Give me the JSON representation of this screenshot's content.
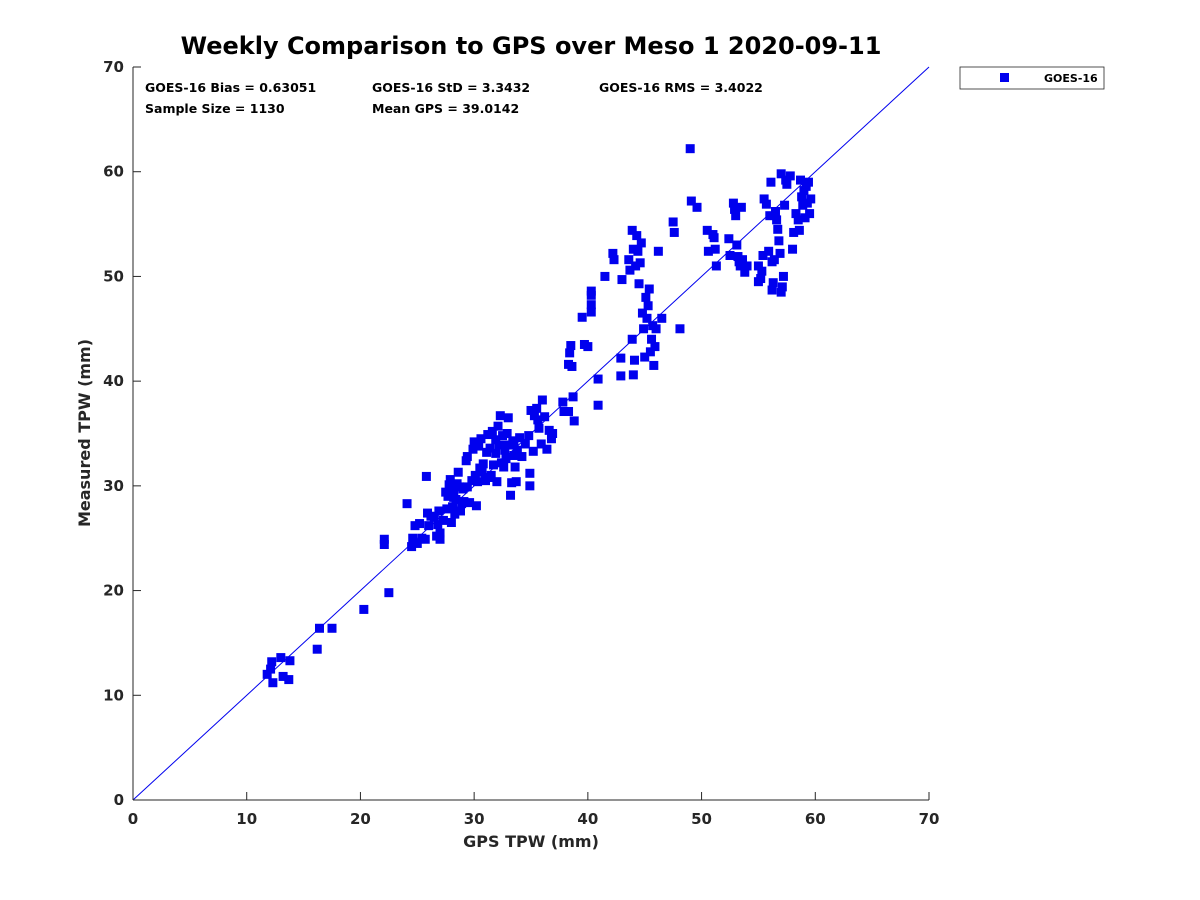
{
  "chart_data": {
    "type": "scatter",
    "title": "Weekly Comparison to GPS over Meso 1 2020-09-11",
    "xlabel": "GPS TPW (mm)",
    "ylabel": "Measured TPW (mm)",
    "xlim": [
      0,
      70
    ],
    "ylim": [
      0,
      70
    ],
    "xticks": [
      "0",
      "10",
      "20",
      "30",
      "40",
      "50",
      "60",
      "70"
    ],
    "yticks": [
      "0",
      "10",
      "20",
      "30",
      "40",
      "50",
      "60",
      "70"
    ],
    "grid": false,
    "legend_position": "outside-top-right",
    "color": "#0000ee",
    "reference_line": {
      "name": "one-to-one",
      "x": [
        0,
        70
      ],
      "y": [
        0,
        70
      ]
    },
    "stats": {
      "bias": "GOES-16 Bias = 0.63051",
      "std": "GOES-16 StD = 3.3432",
      "rms": "GOES-16 RMS = 3.4022",
      "sample_size": "Sample Size = 1130",
      "mean_gps": "Mean GPS = 39.0142"
    },
    "series": [
      {
        "name": "GOES-16",
        "marker": "square",
        "points": [
          [
            11.8,
            12.0
          ],
          [
            12.1,
            12.5
          ],
          [
            12.2,
            13.2
          ],
          [
            12.3,
            11.2
          ],
          [
            13.0,
            13.6
          ],
          [
            13.2,
            11.8
          ],
          [
            13.7,
            11.5
          ],
          [
            13.8,
            13.3
          ],
          [
            16.2,
            14.4
          ],
          [
            16.4,
            16.4
          ],
          [
            17.5,
            16.4
          ],
          [
            20.3,
            18.2
          ],
          [
            22.5,
            19.8
          ],
          [
            22.1,
            24.4
          ],
          [
            22.1,
            24.9
          ],
          [
            24.1,
            28.3
          ],
          [
            24.5,
            24.2
          ],
          [
            24.6,
            25.0
          ],
          [
            24.8,
            26.2
          ],
          [
            25.0,
            24.5
          ],
          [
            25.2,
            26.4
          ],
          [
            25.4,
            25.0
          ],
          [
            25.7,
            24.9
          ],
          [
            25.8,
            30.9
          ],
          [
            25.9,
            27.4
          ],
          [
            26.0,
            26.2
          ],
          [
            26.2,
            27.1
          ],
          [
            26.5,
            27.0
          ],
          [
            26.7,
            25.2
          ],
          [
            26.8,
            26.3
          ],
          [
            26.9,
            27.6
          ],
          [
            27.0,
            24.9
          ],
          [
            27.0,
            25.5
          ],
          [
            27.3,
            26.7
          ],
          [
            27.6,
            27.8
          ],
          [
            27.7,
            29.0
          ],
          [
            27.8,
            30.1
          ],
          [
            27.9,
            30.6
          ],
          [
            28.0,
            26.5
          ],
          [
            28.1,
            28.0
          ],
          [
            28.2,
            29.5
          ],
          [
            28.3,
            27.3
          ],
          [
            28.4,
            28.7
          ],
          [
            28.5,
            30.2
          ],
          [
            28.6,
            31.3
          ],
          [
            28.7,
            29.9
          ],
          [
            28.8,
            27.6
          ],
          [
            28.9,
            28.3
          ],
          [
            29.0,
            29.7
          ],
          [
            29.1,
            28.5
          ],
          [
            29.3,
            32.4
          ],
          [
            29.4,
            32.8
          ],
          [
            29.6,
            28.4
          ],
          [
            29.8,
            30.5
          ],
          [
            29.9,
            33.5
          ],
          [
            30.0,
            34.2
          ],
          [
            30.1,
            31.0
          ],
          [
            30.2,
            28.1
          ],
          [
            30.3,
            30.4
          ],
          [
            30.4,
            33.8
          ],
          [
            30.6,
            34.5
          ],
          [
            30.7,
            31.3
          ],
          [
            30.8,
            32.1
          ],
          [
            31.0,
            30.5
          ],
          [
            31.1,
            33.2
          ],
          [
            31.2,
            34.9
          ],
          [
            31.3,
            30.8
          ],
          [
            31.4,
            33.6
          ],
          [
            31.6,
            35.2
          ],
          [
            31.7,
            32.0
          ],
          [
            31.9,
            34.4
          ],
          [
            32.0,
            30.4
          ],
          [
            32.1,
            35.7
          ],
          [
            32.2,
            33.9
          ],
          [
            32.3,
            36.7
          ],
          [
            32.4,
            32.2
          ],
          [
            32.5,
            34.8
          ],
          [
            32.6,
            31.8
          ],
          [
            32.7,
            33.4
          ],
          [
            32.8,
            32.6
          ],
          [
            32.9,
            35.0
          ],
          [
            33.0,
            36.5
          ],
          [
            33.1,
            33.9
          ],
          [
            33.2,
            29.1
          ],
          [
            33.3,
            30.3
          ],
          [
            33.4,
            34.3
          ],
          [
            33.5,
            32.9
          ],
          [
            33.6,
            31.8
          ],
          [
            33.7,
            30.4
          ],
          [
            33.8,
            33.4
          ],
          [
            34.0,
            34.6
          ],
          [
            34.2,
            32.8
          ],
          [
            34.5,
            34.0
          ],
          [
            34.8,
            34.8
          ],
          [
            34.9,
            31.2
          ],
          [
            34.9,
            30.0
          ],
          [
            35.0,
            37.2
          ],
          [
            35.2,
            33.3
          ],
          [
            35.3,
            36.7
          ],
          [
            35.5,
            37.4
          ],
          [
            35.6,
            36.3
          ],
          [
            35.7,
            35.5
          ],
          [
            35.9,
            34.0
          ],
          [
            36.0,
            38.2
          ],
          [
            36.2,
            36.6
          ],
          [
            36.4,
            33.5
          ],
          [
            36.6,
            35.3
          ],
          [
            36.8,
            34.5
          ],
          [
            36.9,
            35.0
          ],
          [
            37.8,
            38.0
          ],
          [
            37.9,
            37.1
          ],
          [
            38.3,
            37.1
          ],
          [
            38.3,
            41.6
          ],
          [
            38.4,
            42.7
          ],
          [
            38.5,
            43.4
          ],
          [
            38.6,
            41.4
          ],
          [
            38.7,
            38.5
          ],
          [
            38.8,
            36.2
          ],
          [
            39.5,
            46.1
          ],
          [
            39.7,
            43.5
          ],
          [
            40.0,
            43.3
          ],
          [
            40.3,
            46.6
          ],
          [
            40.3,
            47.3
          ],
          [
            40.3,
            48.2
          ],
          [
            40.3,
            48.6
          ],
          [
            40.9,
            40.2
          ],
          [
            40.9,
            37.7
          ],
          [
            41.5,
            50.0
          ],
          [
            42.2,
            52.2
          ],
          [
            42.3,
            51.6
          ],
          [
            42.9,
            42.2
          ],
          [
            42.9,
            40.5
          ],
          [
            43.0,
            49.7
          ],
          [
            43.6,
            51.6
          ],
          [
            43.7,
            50.6
          ],
          [
            43.9,
            44.0
          ],
          [
            43.9,
            54.4
          ],
          [
            44.0,
            52.6
          ],
          [
            44.0,
            40.6
          ],
          [
            44.1,
            42.0
          ],
          [
            44.2,
            51.0
          ],
          [
            44.3,
            53.9
          ],
          [
            44.4,
            52.4
          ],
          [
            44.5,
            49.3
          ],
          [
            44.6,
            51.3
          ],
          [
            44.7,
            53.2
          ],
          [
            44.8,
            46.5
          ],
          [
            44.9,
            45.0
          ],
          [
            45.0,
            42.3
          ],
          [
            45.1,
            48.0
          ],
          [
            45.2,
            46.0
          ],
          [
            45.3,
            47.2
          ],
          [
            45.4,
            48.8
          ],
          [
            45.5,
            42.8
          ],
          [
            45.6,
            44.0
          ],
          [
            45.7,
            45.3
          ],
          [
            45.8,
            41.5
          ],
          [
            45.9,
            43.3
          ],
          [
            46.0,
            45.0
          ],
          [
            46.2,
            52.4
          ],
          [
            46.5,
            46.0
          ],
          [
            47.5,
            55.2
          ],
          [
            47.6,
            54.2
          ],
          [
            48.1,
            45.0
          ],
          [
            49.0,
            62.2
          ],
          [
            49.1,
            57.2
          ],
          [
            49.6,
            56.6
          ],
          [
            50.5,
            54.4
          ],
          [
            50.6,
            52.4
          ],
          [
            51.0,
            54.0
          ],
          [
            51.1,
            53.7
          ],
          [
            51.2,
            52.6
          ],
          [
            51.3,
            51.0
          ],
          [
            52.4,
            53.6
          ],
          [
            52.5,
            52.0
          ],
          [
            52.8,
            57.0
          ],
          [
            52.9,
            56.4
          ],
          [
            53.0,
            55.8
          ],
          [
            53.1,
            53.0
          ],
          [
            53.2,
            51.9
          ],
          [
            53.3,
            51.4
          ],
          [
            53.4,
            51.0
          ],
          [
            53.5,
            56.6
          ],
          [
            53.6,
            51.6
          ],
          [
            53.8,
            50.4
          ],
          [
            54.0,
            51.0
          ],
          [
            55.0,
            51.0
          ],
          [
            55.2,
            49.8
          ],
          [
            55.4,
            52.0
          ],
          [
            55.5,
            57.4
          ],
          [
            55.7,
            56.9
          ],
          [
            55.9,
            52.4
          ],
          [
            56.0,
            55.8
          ],
          [
            56.1,
            59.0
          ],
          [
            56.2,
            51.4
          ],
          [
            56.3,
            49.4
          ],
          [
            56.4,
            51.6
          ],
          [
            56.5,
            56.2
          ],
          [
            56.6,
            55.4
          ],
          [
            56.7,
            54.5
          ],
          [
            56.8,
            53.4
          ],
          [
            56.9,
            52.2
          ],
          [
            57.0,
            59.8
          ],
          [
            57.1,
            49.0
          ],
          [
            57.2,
            50.0
          ],
          [
            57.3,
            56.8
          ],
          [
            57.4,
            59.2
          ],
          [
            57.5,
            58.8
          ],
          [
            57.8,
            59.6
          ],
          [
            58.0,
            52.6
          ],
          [
            58.1,
            54.2
          ],
          [
            58.3,
            56.0
          ],
          [
            58.5,
            55.4
          ],
          [
            58.6,
            54.4
          ],
          [
            58.7,
            59.2
          ],
          [
            58.8,
            57.6
          ],
          [
            58.9,
            56.8
          ],
          [
            59.0,
            58.2
          ],
          [
            59.1,
            55.6
          ],
          [
            59.2,
            58.6
          ],
          [
            59.3,
            57.0
          ],
          [
            59.4,
            59.0
          ],
          [
            59.5,
            56.0
          ],
          [
            59.6,
            57.4
          ],
          [
            55.0,
            49.5
          ],
          [
            56.2,
            48.7
          ],
          [
            57.0,
            48.5
          ],
          [
            55.3,
            50.5
          ],
          [
            31.5,
            31.0
          ],
          [
            32.6,
            33.9
          ],
          [
            30.5,
            31.7
          ],
          [
            27.5,
            29.4
          ],
          [
            28.2,
            28.9
          ],
          [
            29.4,
            29.9
          ],
          [
            33.5,
            34.2
          ],
          [
            31.9,
            33.1
          ]
        ]
      }
    ]
  }
}
